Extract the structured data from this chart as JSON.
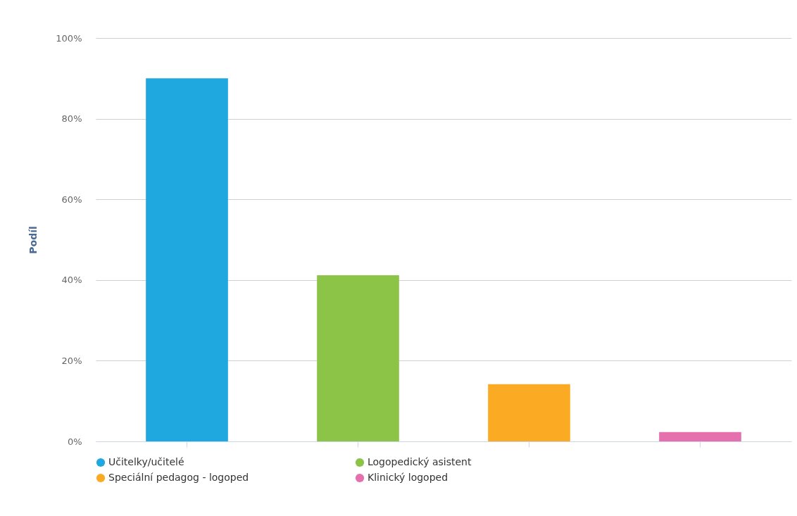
{
  "chart_data": {
    "type": "bar",
    "ylabel": "Podíl",
    "categories": [
      null,
      null,
      null,
      null
    ],
    "series": [
      {
        "name": "Učitelky/učitelé",
        "color": "#1fa8e0",
        "values": [
          90,
          null,
          null,
          null
        ]
      },
      {
        "name": "Logopedický asistent",
        "color": "#8bc447",
        "values": [
          null,
          41.2,
          null,
          null
        ]
      },
      {
        "name": "Speciální pedagog - logoped",
        "color": "#fbaa23",
        "values": [
          null,
          null,
          14.2,
          null
        ]
      },
      {
        "name": "Klinický logoped",
        "color": "#e66fae",
        "values": [
          null,
          null,
          null,
          2.3
        ]
      }
    ],
    "ylim": [
      0,
      100
    ],
    "yticks": [
      {
        "value": 0,
        "label": "0%"
      },
      {
        "value": 20,
        "label": "20%"
      },
      {
        "value": 40,
        "label": "40%"
      },
      {
        "value": 60,
        "label": "60%"
      },
      {
        "value": 80,
        "label": "80%"
      },
      {
        "value": 100,
        "label": "100%"
      }
    ],
    "grid": "y",
    "legend": "bottom",
    "tick_labels": "y"
  }
}
